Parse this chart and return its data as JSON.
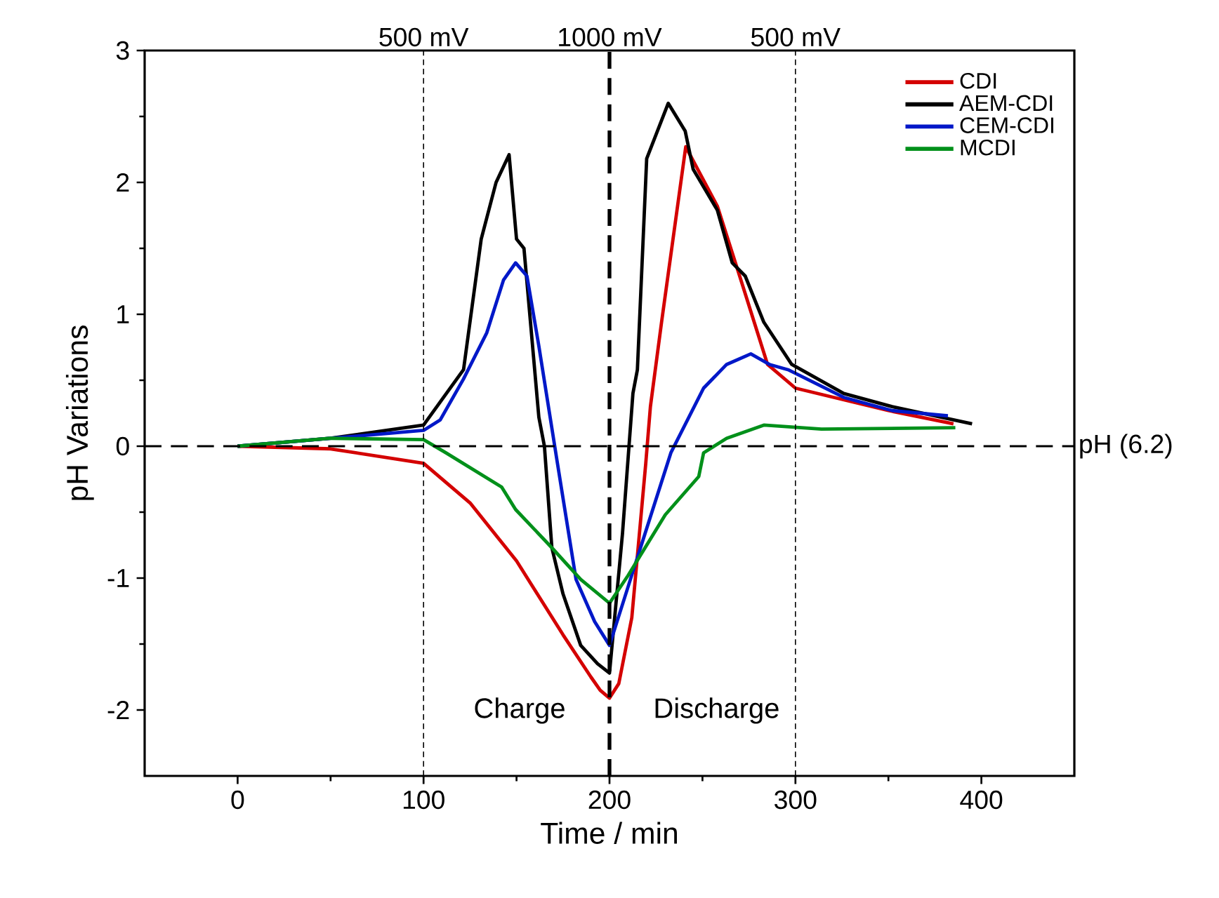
{
  "chart_data": {
    "type": "line",
    "xlabel": "Time / min",
    "ylabel": "pH Variations",
    "xlim": [
      -50,
      450
    ],
    "ylim": [
      -2.5,
      3
    ],
    "xticks": [
      0,
      100,
      200,
      300,
      400
    ],
    "yticks": [
      -2,
      -1,
      0,
      1,
      2,
      3
    ],
    "legend": "top right",
    "grid": false,
    "line_style": "solid",
    "marker": "none",
    "series": [
      {
        "name": "CDI",
        "color": "#d40000",
        "x": [
          0,
          50,
          100,
          125,
          150,
          175,
          190,
          195,
          200,
          205,
          212,
          219.5,
          222,
          228,
          241,
          258,
          270,
          285,
          300,
          350,
          385
        ],
        "values": [
          0,
          -0.02,
          -0.13,
          -0.43,
          -0.87,
          -1.43,
          -1.75,
          -1.85,
          -1.91,
          -1.8,
          -1.3,
          -0.13,
          0.3,
          0.94,
          2.27,
          1.82,
          1.29,
          0.62,
          0.44,
          0.27,
          0.17
        ]
      },
      {
        "name": "AEM-CDI",
        "color": "#000000",
        "x": [
          0,
          50,
          100,
          121.5,
          131,
          139,
          146,
          150,
          154,
          162,
          165,
          169,
          175,
          184.5,
          193.6,
          200,
          207,
          212.6,
          215,
          220,
          231.6,
          240.7,
          245,
          258,
          266,
          273,
          283,
          298,
          326,
          352,
          395
        ],
        "values": [
          0,
          0.06,
          0.16,
          0.58,
          1.57,
          2.0,
          2.21,
          1.57,
          1.5,
          0.22,
          0,
          -0.77,
          -1.12,
          -1.51,
          -1.65,
          -1.72,
          -0.66,
          0.4,
          0.58,
          2.18,
          2.6,
          2.39,
          2.1,
          1.79,
          1.39,
          1.29,
          0.94,
          0.62,
          0.4,
          0.3,
          0.17
        ]
      },
      {
        "name": "CEM-CDI",
        "color": "#0018c8",
        "x": [
          0,
          50,
          100,
          109,
          121.5,
          134,
          143,
          149.5,
          155.6,
          162,
          172,
          182,
          192,
          200,
          212.6,
          233,
          250.6,
          263,
          276,
          286,
          296,
          326,
          352,
          382
        ],
        "values": [
          0,
          0.06,
          0.12,
          0.2,
          0.51,
          0.86,
          1.26,
          1.39,
          1.29,
          0.76,
          -0.13,
          -1.01,
          -1.33,
          -1.51,
          -0.95,
          -0.05,
          0.44,
          0.62,
          0.7,
          0.62,
          0.58,
          0.37,
          0.27,
          0.23
        ]
      },
      {
        "name": "MCDI",
        "color": "#00901a",
        "x": [
          0,
          50,
          100,
          112,
          142,
          149.5,
          169,
          184.5,
          200,
          210,
          230,
          248,
          250.6,
          263,
          283,
          314,
          386
        ],
        "values": [
          0,
          0.06,
          0.05,
          -0.05,
          -0.31,
          -0.48,
          -0.77,
          -1.01,
          -1.19,
          -0.98,
          -0.52,
          -0.23,
          -0.05,
          0.06,
          0.16,
          0.13,
          0.14
        ]
      }
    ],
    "ref_lines": [
      {
        "axis": "x",
        "value": 100,
        "label": "500 mV",
        "line_style": "dotted"
      },
      {
        "axis": "x",
        "value": 200,
        "label": "1000 mV",
        "line_style": "dashed"
      },
      {
        "axis": "x",
        "value": 300,
        "label": "500 mV",
        "line_style": "dotted"
      },
      {
        "axis": "y",
        "value": 0,
        "label": "pH (6.2)",
        "line_style": "dashed"
      }
    ],
    "annotations": [
      "Charge",
      "Discharge"
    ]
  }
}
